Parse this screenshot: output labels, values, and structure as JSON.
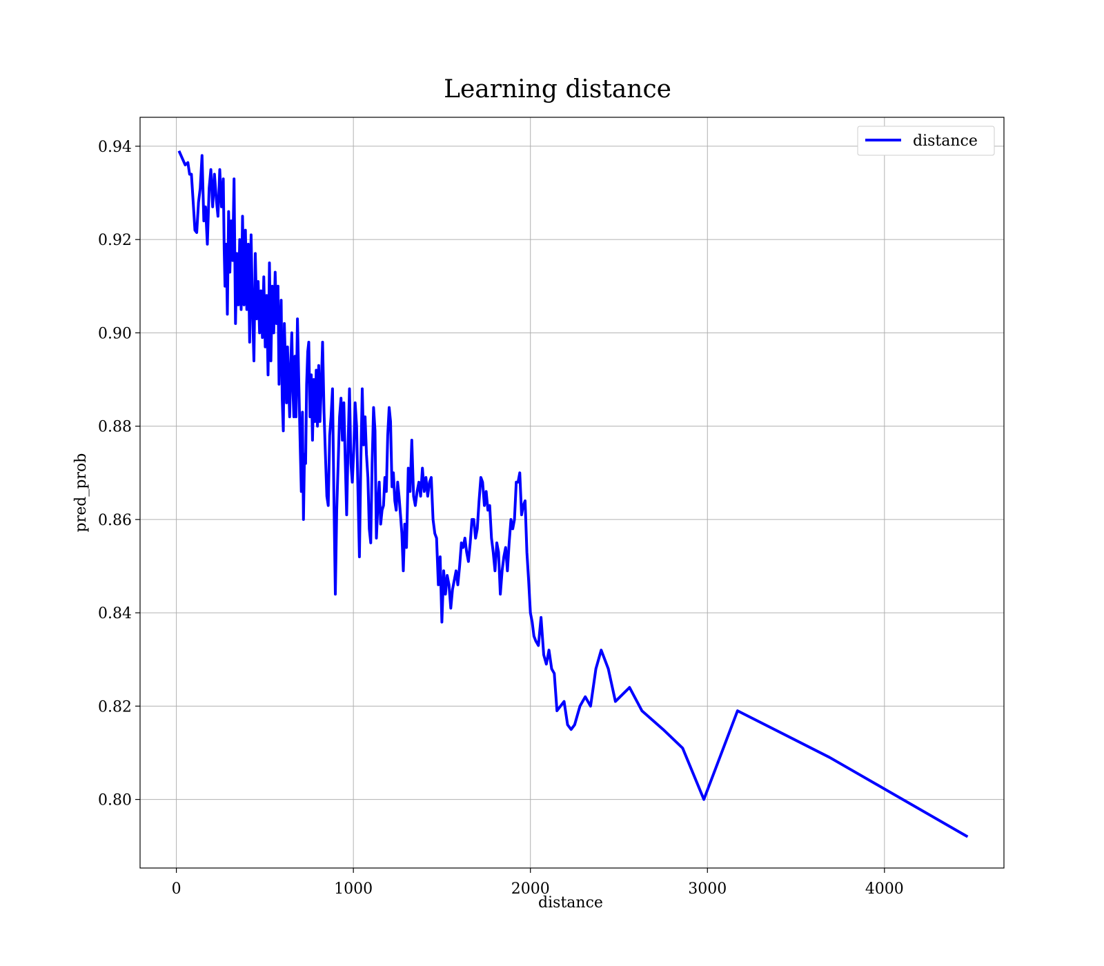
{
  "chart_data": {
    "type": "line",
    "title": "Learning distance",
    "xlabel": "distance",
    "ylabel": "pred_prob",
    "xlim": [
      -205,
      4675
    ],
    "ylim": [
      0.7853,
      0.9462
    ],
    "xticks": [
      0,
      1000,
      2000,
      3000,
      4000
    ],
    "xtick_labels": [
      "0",
      "1000",
      "2000",
      "3000",
      "4000"
    ],
    "yticks": [
      0.8,
      0.82,
      0.84,
      0.86,
      0.88,
      0.9,
      0.92,
      0.94
    ],
    "ytick_labels": [
      "0.80",
      "0.82",
      "0.84",
      "0.86",
      "0.88",
      "0.90",
      "0.92",
      "0.94"
    ],
    "grid": true,
    "legend": {
      "position": "top-right",
      "entries": [
        "distance"
      ]
    },
    "series": [
      {
        "name": "distance",
        "color": "#0000ff",
        "points": [
          [
            15,
            0.939
          ],
          [
            50,
            0.936
          ],
          [
            65,
            0.9365
          ],
          [
            75,
            0.934
          ],
          [
            85,
            0.934
          ],
          [
            95,
            0.928
          ],
          [
            105,
            0.922
          ],
          [
            115,
            0.9215
          ],
          [
            125,
            0.928
          ],
          [
            135,
            0.931
          ],
          [
            145,
            0.938
          ],
          [
            155,
            0.924
          ],
          [
            165,
            0.927
          ],
          [
            175,
            0.919
          ],
          [
            185,
            0.931
          ],
          [
            195,
            0.935
          ],
          [
            205,
            0.927
          ],
          [
            215,
            0.934
          ],
          [
            225,
            0.929
          ],
          [
            235,
            0.925
          ],
          [
            245,
            0.935
          ],
          [
            255,
            0.927
          ],
          [
            265,
            0.933
          ],
          [
            270,
            0.918
          ],
          [
            275,
            0.91
          ],
          [
            282,
            0.919
          ],
          [
            288,
            0.904
          ],
          [
            295,
            0.926
          ],
          [
            302,
            0.913
          ],
          [
            310,
            0.924
          ],
          [
            318,
            0.9155
          ],
          [
            326,
            0.933
          ],
          [
            334,
            0.902
          ],
          [
            342,
            0.917
          ],
          [
            350,
            0.906
          ],
          [
            358,
            0.92
          ],
          [
            366,
            0.905
          ],
          [
            374,
            0.925
          ],
          [
            382,
            0.906
          ],
          [
            390,
            0.922
          ],
          [
            398,
            0.905
          ],
          [
            406,
            0.919
          ],
          [
            414,
            0.898
          ],
          [
            422,
            0.921
          ],
          [
            430,
            0.905
          ],
          [
            438,
            0.894
          ],
          [
            446,
            0.917
          ],
          [
            454,
            0.903
          ],
          [
            462,
            0.911
          ],
          [
            470,
            0.9
          ],
          [
            478,
            0.909
          ],
          [
            486,
            0.899
          ],
          [
            494,
            0.912
          ],
          [
            502,
            0.897
          ],
          [
            510,
            0.908
          ],
          [
            518,
            0.891
          ],
          [
            526,
            0.915
          ],
          [
            534,
            0.894
          ],
          [
            542,
            0.91
          ],
          [
            550,
            0.9
          ],
          [
            558,
            0.913
          ],
          [
            566,
            0.902
          ],
          [
            574,
            0.91
          ],
          [
            580,
            0.889
          ],
          [
            586,
            0.9
          ],
          [
            592,
            0.907
          ],
          [
            598,
            0.886
          ],
          [
            604,
            0.879
          ],
          [
            610,
            0.902
          ],
          [
            616,
            0.894
          ],
          [
            622,
            0.885
          ],
          [
            628,
            0.897
          ],
          [
            634,
            0.889
          ],
          [
            640,
            0.882
          ],
          [
            646,
            0.893
          ],
          [
            652,
            0.9
          ],
          [
            658,
            0.888
          ],
          [
            664,
            0.882
          ],
          [
            670,
            0.895
          ],
          [
            676,
            0.882
          ],
          [
            684,
            0.903
          ],
          [
            692,
            0.889
          ],
          [
            700,
            0.875
          ],
          [
            706,
            0.866
          ],
          [
            712,
            0.883
          ],
          [
            718,
            0.86
          ],
          [
            724,
            0.874
          ],
          [
            730,
            0.872
          ],
          [
            736,
            0.889
          ],
          [
            742,
            0.896
          ],
          [
            748,
            0.898
          ],
          [
            755,
            0.882
          ],
          [
            762,
            0.891
          ],
          [
            769,
            0.877
          ],
          [
            776,
            0.89
          ],
          [
            783,
            0.881
          ],
          [
            790,
            0.892
          ],
          [
            797,
            0.88
          ],
          [
            804,
            0.893
          ],
          [
            811,
            0.881
          ],
          [
            818,
            0.888
          ],
          [
            826,
            0.898
          ],
          [
            834,
            0.883
          ],
          [
            842,
            0.874
          ],
          [
            850,
            0.865
          ],
          [
            858,
            0.863
          ],
          [
            866,
            0.878
          ],
          [
            874,
            0.882
          ],
          [
            882,
            0.888
          ],
          [
            890,
            0.865
          ],
          [
            898,
            0.844
          ],
          [
            906,
            0.862
          ],
          [
            914,
            0.872
          ],
          [
            922,
            0.882
          ],
          [
            930,
            0.886
          ],
          [
            938,
            0.877
          ],
          [
            946,
            0.885
          ],
          [
            954,
            0.873
          ],
          [
            962,
            0.861
          ],
          [
            970,
            0.876
          ],
          [
            978,
            0.888
          ],
          [
            986,
            0.872
          ],
          [
            994,
            0.868
          ],
          [
            1002,
            0.875
          ],
          [
            1010,
            0.885
          ],
          [
            1018,
            0.88
          ],
          [
            1026,
            0.866
          ],
          [
            1034,
            0.852
          ],
          [
            1042,
            0.872
          ],
          [
            1050,
            0.888
          ],
          [
            1058,
            0.876
          ],
          [
            1066,
            0.882
          ],
          [
            1074,
            0.874
          ],
          [
            1082,
            0.869
          ],
          [
            1090,
            0.858
          ],
          [
            1098,
            0.855
          ],
          [
            1106,
            0.872
          ],
          [
            1114,
            0.884
          ],
          [
            1122,
            0.879
          ],
          [
            1130,
            0.856
          ],
          [
            1138,
            0.863
          ],
          [
            1146,
            0.868
          ],
          [
            1154,
            0.859
          ],
          [
            1162,
            0.862
          ],
          [
            1170,
            0.863
          ],
          [
            1178,
            0.869
          ],
          [
            1186,
            0.866
          ],
          [
            1194,
            0.878
          ],
          [
            1202,
            0.884
          ],
          [
            1210,
            0.881
          ],
          [
            1218,
            0.867
          ],
          [
            1226,
            0.87
          ],
          [
            1234,
            0.864
          ],
          [
            1242,
            0.862
          ],
          [
            1250,
            0.868
          ],
          [
            1258,
            0.865
          ],
          [
            1266,
            0.861
          ],
          [
            1274,
            0.857
          ],
          [
            1282,
            0.849
          ],
          [
            1290,
            0.859
          ],
          [
            1300,
            0.854
          ],
          [
            1310,
            0.871
          ],
          [
            1320,
            0.866
          ],
          [
            1330,
            0.877
          ],
          [
            1340,
            0.865
          ],
          [
            1350,
            0.863
          ],
          [
            1360,
            0.866
          ],
          [
            1370,
            0.868
          ],
          [
            1380,
            0.865
          ],
          [
            1390,
            0.871
          ],
          [
            1400,
            0.866
          ],
          [
            1410,
            0.869
          ],
          [
            1420,
            0.865
          ],
          [
            1430,
            0.868
          ],
          [
            1440,
            0.869
          ],
          [
            1450,
            0.86
          ],
          [
            1460,
            0.857
          ],
          [
            1470,
            0.856
          ],
          [
            1480,
            0.846
          ],
          [
            1490,
            0.852
          ],
          [
            1500,
            0.838
          ],
          [
            1510,
            0.849
          ],
          [
            1520,
            0.844
          ],
          [
            1530,
            0.848
          ],
          [
            1540,
            0.846
          ],
          [
            1550,
            0.841
          ],
          [
            1560,
            0.845
          ],
          [
            1570,
            0.847
          ],
          [
            1580,
            0.849
          ],
          [
            1590,
            0.846
          ],
          [
            1600,
            0.85
          ],
          [
            1610,
            0.855
          ],
          [
            1620,
            0.854
          ],
          [
            1630,
            0.856
          ],
          [
            1640,
            0.853
          ],
          [
            1650,
            0.851
          ],
          [
            1660,
            0.855
          ],
          [
            1670,
            0.86
          ],
          [
            1680,
            0.86
          ],
          [
            1690,
            0.856
          ],
          [
            1700,
            0.858
          ],
          [
            1710,
            0.864
          ],
          [
            1720,
            0.869
          ],
          [
            1730,
            0.868
          ],
          [
            1740,
            0.863
          ],
          [
            1750,
            0.866
          ],
          [
            1760,
            0.862
          ],
          [
            1770,
            0.863
          ],
          [
            1780,
            0.856
          ],
          [
            1790,
            0.853
          ],
          [
            1800,
            0.849
          ],
          [
            1810,
            0.855
          ],
          [
            1820,
            0.853
          ],
          [
            1830,
            0.844
          ],
          [
            1840,
            0.849
          ],
          [
            1850,
            0.852
          ],
          [
            1860,
            0.854
          ],
          [
            1870,
            0.849
          ],
          [
            1880,
            0.855
          ],
          [
            1890,
            0.86
          ],
          [
            1900,
            0.858
          ],
          [
            1910,
            0.86
          ],
          [
            1920,
            0.868
          ],
          [
            1930,
            0.868
          ],
          [
            1940,
            0.87
          ],
          [
            1950,
            0.861
          ],
          [
            1960,
            0.863
          ],
          [
            1970,
            0.864
          ],
          [
            1980,
            0.853
          ],
          [
            1990,
            0.847
          ],
          [
            2000,
            0.84
          ],
          [
            2010,
            0.838
          ],
          [
            2020,
            0.835
          ],
          [
            2030,
            0.834
          ],
          [
            2045,
            0.833
          ],
          [
            2060,
            0.839
          ],
          [
            2075,
            0.831
          ],
          [
            2090,
            0.829
          ],
          [
            2105,
            0.832
          ],
          [
            2120,
            0.828
          ],
          [
            2135,
            0.827
          ],
          [
            2150,
            0.819
          ],
          [
            2170,
            0.82
          ],
          [
            2190,
            0.821
          ],
          [
            2210,
            0.816
          ],
          [
            2230,
            0.815
          ],
          [
            2250,
            0.816
          ],
          [
            2280,
            0.82
          ],
          [
            2310,
            0.822
          ],
          [
            2340,
            0.82
          ],
          [
            2370,
            0.828
          ],
          [
            2400,
            0.832
          ],
          [
            2440,
            0.828
          ],
          [
            2480,
            0.821
          ],
          [
            2560,
            0.824
          ],
          [
            2630,
            0.819
          ],
          [
            2750,
            0.815
          ],
          [
            2860,
            0.811
          ],
          [
            2980,
            0.8
          ],
          [
            3170,
            0.819
          ],
          [
            3690,
            0.809
          ],
          [
            4470,
            0.792
          ]
        ]
      }
    ]
  }
}
